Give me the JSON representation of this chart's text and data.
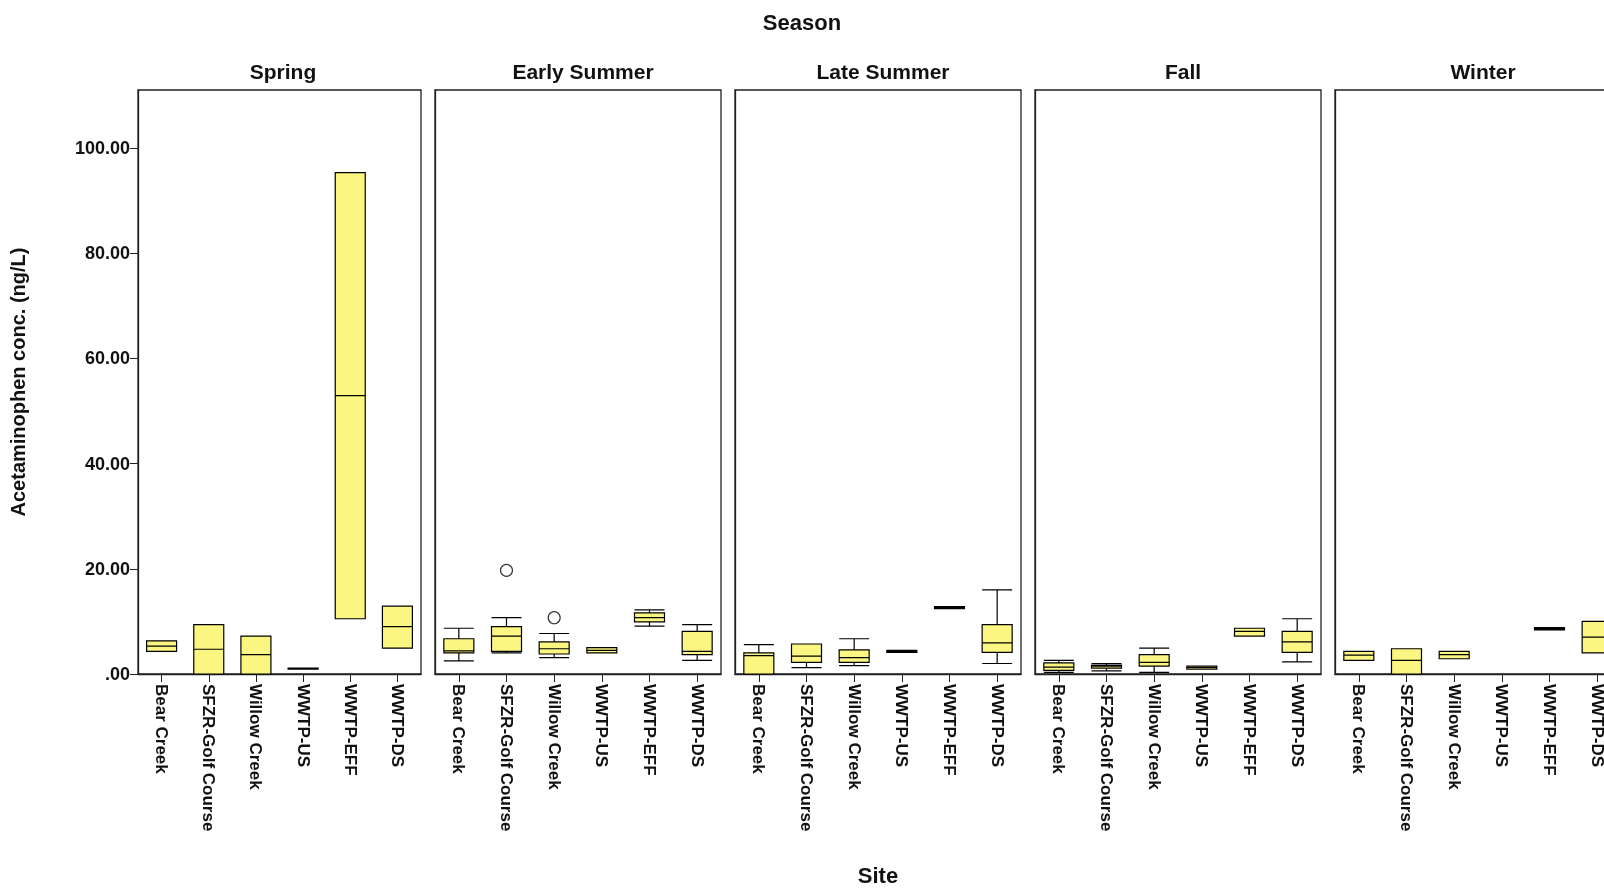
{
  "chart_data": [
    {
      "type": "box",
      "title": "Spring",
      "ylabel": "Acetaminophen conc. (ng/L)",
      "annotations": [
        "Season"
      ],
      "categories": [
        "Bear Creek",
        "SFZR-Golf Course",
        "Willow Creek",
        "WWTP-US",
        "WWTP-EFF",
        "WWTP-DS"
      ],
      "ylim": [
        0,
        111
      ],
      "yticks": [
        {
          "value": 0,
          "label": ".00"
        },
        {
          "value": 20,
          "label": "20.00"
        },
        {
          "value": 40,
          "label": "40.00"
        },
        {
          "value": 60,
          "label": "60.00"
        },
        {
          "value": 80,
          "label": "80.00"
        },
        {
          "value": 100,
          "label": "100.00"
        }
      ],
      "series": [
        {
          "color": "#fbf582",
          "boxes": [
            {
              "low": 4.3,
              "q1": 4.3,
              "median": 5.3,
              "q3": 6.3,
              "high": 6.3
            },
            {
              "low": 0,
              "q1": 0,
              "median": 4.7,
              "q3": 9.4,
              "high": 9.4
            },
            {
              "low": 0,
              "q1": 0,
              "median": 3.7,
              "q3": 7.2,
              "high": 7.2
            },
            {
              "low": 0.9,
              "q1": 0.9,
              "median": 1.0,
              "q3": 1.1,
              "high": 1.1
            },
            {
              "low": 10.5,
              "q1": 10.5,
              "median": 52.9,
              "q3": 95.3,
              "high": 95.3
            },
            {
              "low": 4.9,
              "q1": 4.9,
              "median": 9.0,
              "q3": 12.9,
              "high": 12.9
            }
          ]
        }
      ]
    },
    {
      "type": "box",
      "title": "Early Summer",
      "tick_labels": "x",
      "categories": [
        "Bear Creek",
        "SFZR-Golf Course",
        "Willow Creek",
        "WWTP-US",
        "WWTP-EFF",
        "WWTP-DS"
      ],
      "ylim": [
        0,
        111
      ],
      "series": [
        {
          "color": "#fbf582",
          "boxes": [
            {
              "low": 2.5,
              "q1": 4.0,
              "median": 4.4,
              "q3": 6.7,
              "high": 8.7
            },
            {
              "low": 4.0,
              "q1": 4.3,
              "median": 7.2,
              "q3": 9.0,
              "high": 10.7,
              "outliers": [
                19.7
              ]
            },
            {
              "low": 3.1,
              "q1": 3.8,
              "median": 4.8,
              "q3": 6.1,
              "high": 7.7,
              "outliers": [
                10.7
              ]
            },
            {
              "low": 4.0,
              "q1": 4.0,
              "median": 4.5,
              "q3": 5.0,
              "high": 5.0
            },
            {
              "low": 9.1,
              "q1": 9.9,
              "median": 10.7,
              "q3": 11.6,
              "high": 12.2
            },
            {
              "low": 2.6,
              "q1": 3.7,
              "median": 4.3,
              "q3": 8.1,
              "high": 9.4
            }
          ]
        }
      ]
    },
    {
      "type": "box",
      "title": "Late Summer",
      "xlabel": "Site",
      "tick_labels": "x",
      "categories": [
        "Bear Creek",
        "SFZR-Golf Course",
        "Willow Creek",
        "WWTP-US",
        "WWTP-EFF",
        "WWTP-DS"
      ],
      "ylim": [
        0,
        111
      ],
      "series": [
        {
          "color": "#fbf582",
          "boxes": [
            {
              "low": 0,
              "q1": 0,
              "median": 3.5,
              "q3": 4.0,
              "high": 5.6
            },
            {
              "low": 1.2,
              "q1": 2.2,
              "median": 3.4,
              "q3": 5.7,
              "high": 5.7
            },
            {
              "low": 1.6,
              "q1": 2.2,
              "median": 3.1,
              "q3": 4.6,
              "high": 6.7
            },
            {
              "low": 4.1,
              "q1": 4.1,
              "median": 4.3,
              "q3": 4.5,
              "high": 4.5
            },
            {
              "low": 12.4,
              "q1": 12.4,
              "median": 12.6,
              "q3": 12.8,
              "high": 12.8
            },
            {
              "low": 2.0,
              "q1": 4.1,
              "median": 5.9,
              "q3": 9.4,
              "high": 16.0
            }
          ]
        }
      ]
    },
    {
      "type": "box",
      "title": "Fall",
      "tick_labels": "x",
      "categories": [
        "Bear Creek",
        "SFZR-Golf Course",
        "Willow Creek",
        "WWTP-US",
        "WWTP-EFF",
        "WWTP-DS"
      ],
      "ylim": [
        0,
        111
      ],
      "series": [
        {
          "color": "#fbf582",
          "boxes": [
            {
              "low": 0.3,
              "q1": 0.7,
              "median": 1.3,
              "q3": 2.1,
              "high": 2.6
            },
            {
              "low": 0.6,
              "q1": 1.1,
              "median": 1.5,
              "q3": 1.7,
              "high": 2.0
            },
            {
              "low": 0.3,
              "q1": 1.5,
              "median": 2.2,
              "q3": 3.7,
              "high": 4.9
            },
            {
              "low": 0.9,
              "q1": 0.9,
              "median": 1.2,
              "q3": 1.5,
              "high": 1.5
            },
            {
              "low": 7.2,
              "q1": 7.2,
              "median": 8.1,
              "q3": 8.7,
              "high": 8.7
            },
            {
              "low": 2.3,
              "q1": 4.1,
              "median": 6.1,
              "q3": 8.1,
              "high": 10.5
            }
          ]
        }
      ]
    },
    {
      "type": "box",
      "title": "Winter",
      "tick_labels": "x",
      "categories": [
        "Bear Creek",
        "SFZR-Golf Course",
        "Willow Creek",
        "WWTP-US",
        "WWTP-EFF",
        "WWTP-DS"
      ],
      "ylim": [
        0,
        111
      ],
      "series": [
        {
          "color": "#fbf582",
          "boxes": [
            {
              "low": 2.6,
              "q1": 2.6,
              "median": 3.6,
              "q3": 4.3,
              "high": 4.3
            },
            {
              "low": 0,
              "q1": 0,
              "median": 2.6,
              "q3": 4.8,
              "high": 4.8
            },
            {
              "low": 2.9,
              "q1": 2.9,
              "median": 3.7,
              "q3": 4.3,
              "high": 4.3
            },
            null,
            {
              "low": 8.4,
              "q1": 8.4,
              "median": 8.6,
              "q3": 8.8,
              "high": 8.8
            },
            {
              "low": 4.0,
              "q1": 4.0,
              "median": 7.0,
              "q3": 10.0,
              "high": 10.0
            }
          ]
        }
      ]
    }
  ]
}
